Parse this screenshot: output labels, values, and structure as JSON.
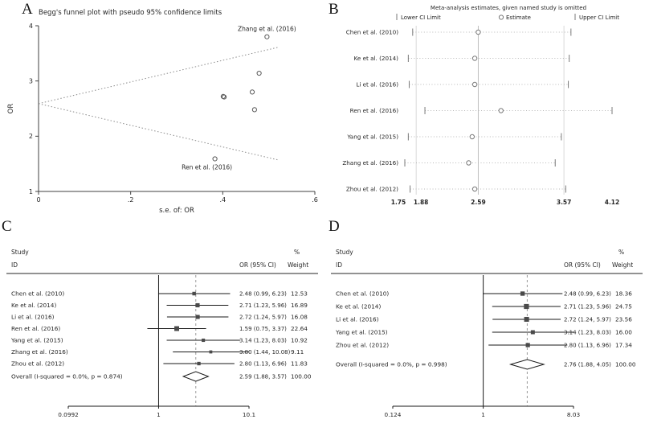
{
  "figure": {
    "panel_labels": {
      "a": "A",
      "b": "B",
      "c": "C",
      "d": "D"
    }
  },
  "chart_data": [
    {
      "panel": "A",
      "type": "scatter",
      "title": "Begg's funnel plot with pseudo 95% confidence limits",
      "xlabel": "s.e. of: OR",
      "ylabel": "OR",
      "xlim": [
        0,
        0.6
      ],
      "ylim": [
        1,
        4
      ],
      "xticks": [
        0,
        0.2,
        0.4,
        0.6
      ],
      "xtick_labels": [
        "0",
        ".2",
        ".4",
        ".6"
      ],
      "yticks": [
        1,
        2,
        3,
        4
      ],
      "center": 2.59,
      "funnel_max_se": 0.52,
      "points": [
        {
          "study": "Chen et al. (2010)",
          "se": 0.469,
          "or": 2.48
        },
        {
          "study": "Ke et al. (2014)",
          "se": 0.403,
          "or": 2.71
        },
        {
          "study": "Li et al. (2016)",
          "se": 0.401,
          "or": 2.72
        },
        {
          "study": "Ren et al. (2016)",
          "se": 0.383,
          "or": 1.59,
          "label": "Ren et al. (2016)",
          "label_pos": "below",
          "label_dx": -10
        },
        {
          "study": "Yang et al. (2015)",
          "se": 0.479,
          "or": 3.14
        },
        {
          "study": "Zhang et al. (2016)",
          "se": 0.496,
          "or": 3.8,
          "label": "Zhang et al. (2016)",
          "label_pos": "above",
          "label_dx": 0
        },
        {
          "study": "Zhou et al. (2012)",
          "se": 0.464,
          "or": 2.8
        }
      ]
    },
    {
      "panel": "B",
      "type": "sensitivity",
      "title": "Meta-analysis estimates, given named study is omitted",
      "legend": [
        "Lower CI Limit",
        "Estimate",
        "Upper CI Limit"
      ],
      "xticks": [
        1.75,
        1.88,
        2.59,
        3.57,
        4.12
      ],
      "xtick_labels": [
        "1.75",
        "1.88",
        "2.59",
        "3.57",
        "4.12"
      ],
      "vlines": [
        1.88,
        2.59,
        3.57
      ],
      "rows": [
        {
          "study": "Chen et al. (2010)",
          "lower": 1.84,
          "estimate": 2.59,
          "upper": 3.65
        },
        {
          "study": "Ke et al. (2014)",
          "lower": 1.79,
          "estimate": 2.55,
          "upper": 3.63
        },
        {
          "study": "Li et al. (2016)",
          "lower": 1.8,
          "estimate": 2.55,
          "upper": 3.62
        },
        {
          "study": "Ren et al. (2016)",
          "lower": 1.98,
          "estimate": 2.85,
          "upper": 4.12
        },
        {
          "study": "Yang et al. (2015)",
          "lower": 1.79,
          "estimate": 2.52,
          "upper": 3.54
        },
        {
          "study": "Zhang et al. (2016)",
          "lower": 1.75,
          "estimate": 2.48,
          "upper": 3.47
        },
        {
          "study": "Zhou et al. (2012)",
          "lower": 1.81,
          "estimate": 2.55,
          "upper": 3.59
        }
      ]
    },
    {
      "panel": "C",
      "type": "forest",
      "headers": {
        "study": "Study",
        "id": "ID",
        "or": "OR (95% CI)",
        "pct": "%",
        "weight": "Weight"
      },
      "xscale": "log",
      "null_value": 1,
      "xticks": [
        0.0992,
        1,
        10.1
      ],
      "xtick_labels": [
        "0.0992",
        "1",
        "10.1"
      ],
      "rows": [
        {
          "study": "Chen et al. (2010)",
          "or": 2.48,
          "lower": 0.99,
          "upper": 6.23,
          "or_ci": "2.48 (0.99, 6.23)",
          "weight": 12.53
        },
        {
          "study": "Ke et al. (2014)",
          "or": 2.71,
          "lower": 1.23,
          "upper": 5.96,
          "or_ci": "2.71 (1.23, 5.96)",
          "weight": 16.89
        },
        {
          "study": "Li et al. (2016)",
          "or": 2.72,
          "lower": 1.24,
          "upper": 5.97,
          "or_ci": "2.72 (1.24, 5.97)",
          "weight": 16.08
        },
        {
          "study": "Ren et al. (2016)",
          "or": 1.59,
          "lower": 0.75,
          "upper": 3.37,
          "or_ci": "1.59 (0.75, 3.37)",
          "weight": 22.64
        },
        {
          "study": "Yang et al. (2015)",
          "or": 3.14,
          "lower": 1.23,
          "upper": 8.03,
          "or_ci": "3.14 (1.23, 8.03)",
          "weight": 10.92
        },
        {
          "study": "Zhang et al. (2016)",
          "or": 3.8,
          "lower": 1.44,
          "upper": 10.08,
          "or_ci": "3.80 (1.44, 10.08)",
          "weight": 9.11
        },
        {
          "study": "Zhou et al. (2012)",
          "or": 2.8,
          "lower": 1.13,
          "upper": 6.96,
          "or_ci": "2.80 (1.13, 6.96)",
          "weight": 11.83
        }
      ],
      "overall": {
        "label": "Overall  (I-squared = 0.0%, p = 0.874)",
        "or": 2.59,
        "lower": 1.88,
        "upper": 3.57,
        "or_ci": "2.59 (1.88, 3.57)",
        "weight": 100
      }
    },
    {
      "panel": "D",
      "type": "forest",
      "headers": {
        "study": "Study",
        "id": "ID",
        "or": "OR (95% CI)",
        "pct": "%",
        "weight": "Weight"
      },
      "xscale": "log",
      "null_value": 1,
      "xticks": [
        0.124,
        1,
        8.03
      ],
      "xtick_labels": [
        "0.124",
        "1",
        "8.03"
      ],
      "rows": [
        {
          "study": "Chen et al. (2010)",
          "or": 2.48,
          "lower": 0.99,
          "upper": 6.23,
          "or_ci": "2.48 (0.99, 6.23)",
          "weight": 18.36
        },
        {
          "study": "Ke et al. (2014)",
          "or": 2.71,
          "lower": 1.23,
          "upper": 5.96,
          "or_ci": "2.71 (1.23, 5.96)",
          "weight": 24.75
        },
        {
          "study": "Li et al. (2016)",
          "or": 2.72,
          "lower": 1.24,
          "upper": 5.97,
          "or_ci": "2.72 (1.24, 5.97)",
          "weight": 23.56
        },
        {
          "study": "Yang et al. (2015)",
          "or": 3.14,
          "lower": 1.23,
          "upper": 8.03,
          "or_ci": "3.14 (1.23, 8.03)",
          "weight": 16.0
        },
        {
          "study": "Zhou et al. (2012)",
          "or": 2.8,
          "lower": 1.13,
          "upper": 6.96,
          "or_ci": "2.80 (1.13, 6.96)",
          "weight": 17.34
        }
      ],
      "overall": {
        "label": "Overall  (I-squared = 0.0%, p = 0.998)",
        "or": 2.76,
        "lower": 1.88,
        "upper": 4.05,
        "or_ci": "2.76 (1.88, 4.05)",
        "weight": 100
      }
    }
  ]
}
